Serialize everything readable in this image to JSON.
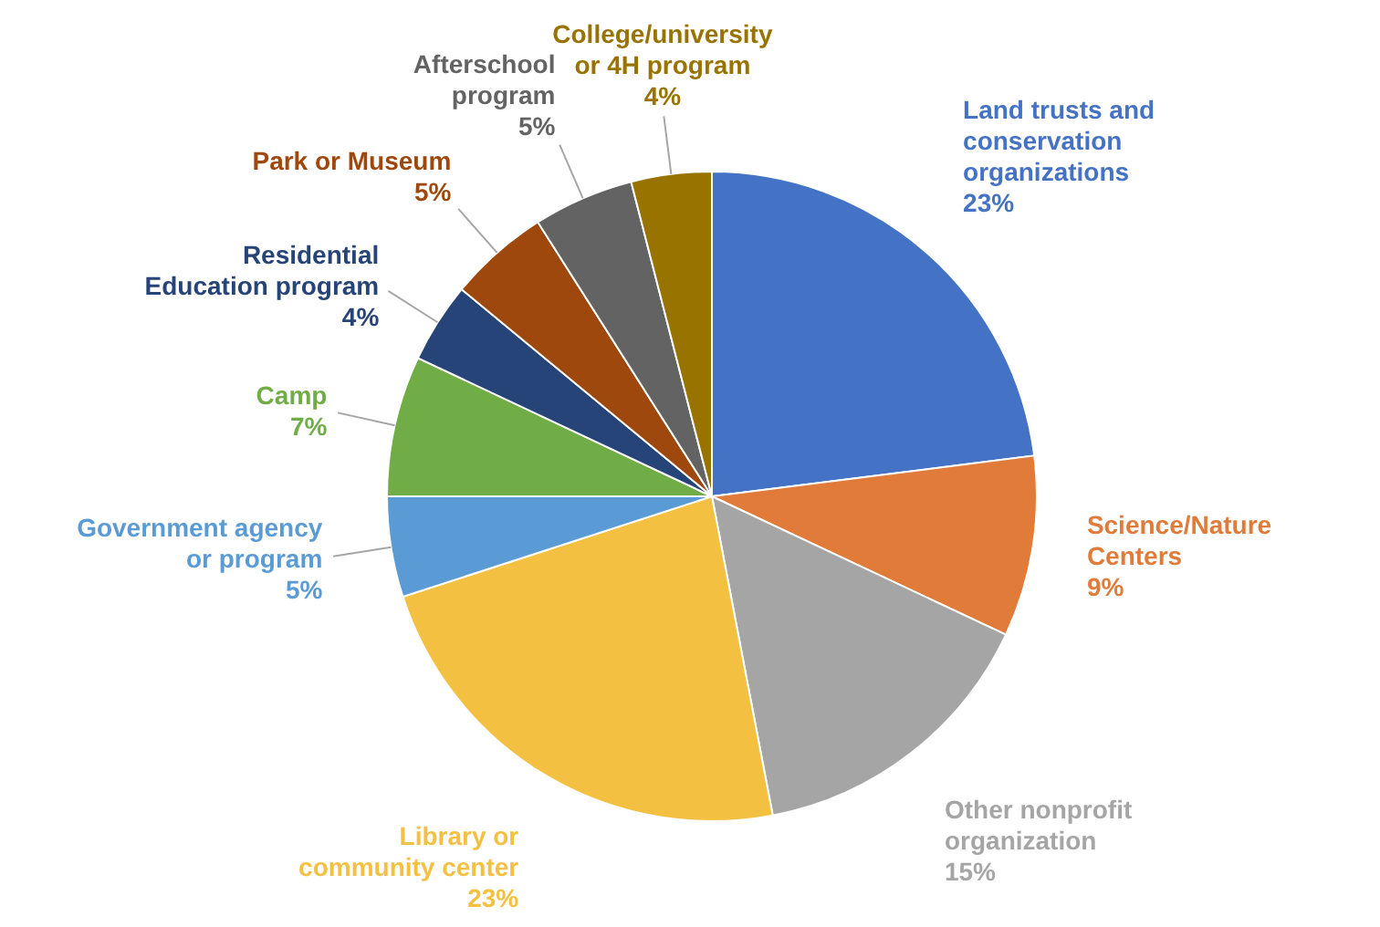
{
  "chart_data": {
    "type": "pie",
    "categories": [
      "Land trusts and conservation organizations",
      "Science/Nature Centers",
      "Other nonprofit organization",
      "Library or community center",
      "Government agency or program",
      "Camp",
      "Residential Education program",
      "Park or Museum",
      "Afterschool program",
      "College/university or 4H program"
    ],
    "values": [
      23,
      9,
      15,
      23,
      5,
      7,
      4,
      5,
      5,
      4
    ],
    "value_labels": [
      "23%",
      "9%",
      "15%",
      "23%",
      "5%",
      "7%",
      "4%",
      "5%",
      "5%",
      "4%"
    ],
    "colors": [
      "#4472c4",
      "#e07b39",
      "#a5a5a5",
      "#f4c042",
      "#5b9bd5",
      "#70ad47",
      "#264478",
      "#9e480e",
      "#636363",
      "#997300"
    ]
  }
}
